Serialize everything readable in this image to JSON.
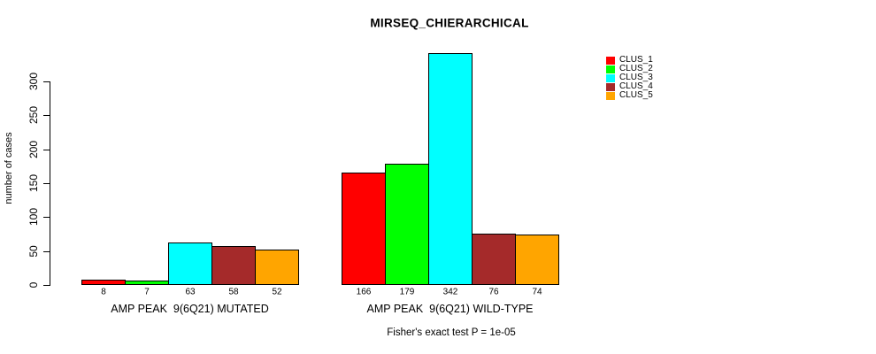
{
  "chart_data": {
    "type": "bar",
    "title": "MIRSEQ_CHIERARCHICAL",
    "ylabel": "number of cases",
    "xlabel": "",
    "annotation": "Fisher's exact test P = 1e-05",
    "categories": [
      "AMP PEAK  9(6Q21) MUTATED",
      "AMP PEAK  9(6Q21) WILD-TYPE"
    ],
    "series": [
      {
        "name": "CLUS_1",
        "color": "#ff0000",
        "values": [
          8,
          166
        ]
      },
      {
        "name": "CLUS_2",
        "color": "#00ff00",
        "values": [
          7,
          179
        ]
      },
      {
        "name": "CLUS_3",
        "color": "#00ffff",
        "values": [
          63,
          342
        ]
      },
      {
        "name": "CLUS_4",
        "color": "#a52a2a",
        "values": [
          58,
          76
        ]
      },
      {
        "name": "CLUS_5",
        "color": "#ffa500",
        "values": [
          52,
          74
        ]
      }
    ],
    "yticks": [
      0,
      50,
      100,
      150,
      200,
      250,
      300
    ],
    "ylim": [
      0,
      345
    ],
    "grid": false,
    "legend_position": "top-right",
    "bar_outline_color": "#000000",
    "value_labels_shown": true,
    "background_color": "#ffffff"
  }
}
